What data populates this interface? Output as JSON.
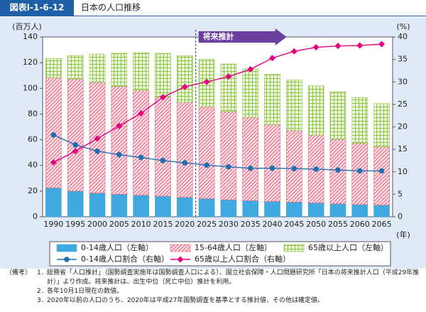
{
  "header": {
    "label": "図表Ⅰ-1-6-12",
    "title": "日本の人口推移"
  },
  "chart_data": {
    "type": "bar",
    "stacked": true,
    "y_label": "(百万人)",
    "y2_label": "(%)",
    "x_unit": "(年)",
    "annotation": "将来推計",
    "categories": [
      "1990",
      "1995",
      "2000",
      "2005",
      "2010",
      "2015",
      "2020",
      "2025",
      "2030",
      "2035",
      "2040",
      "2045",
      "2050",
      "2055",
      "2060",
      "2065"
    ],
    "series": [
      {
        "name": "0-14歳人口（左軸）",
        "color": "#3fa9e0",
        "values": [
          22.5,
          20.0,
          18.5,
          17.5,
          16.8,
          16.0,
          15.1,
          14.1,
          13.2,
          12.5,
          11.9,
          11.4,
          10.8,
          10.1,
          9.5,
          9.0
        ]
      },
      {
        "name": "15-64歳人口（左軸）",
        "color": "#e8607a",
        "values": [
          85.9,
          87.3,
          86.2,
          84.1,
          81.7,
          77.3,
          74.1,
          71.7,
          68.8,
          64.9,
          59.8,
          55.8,
          52.8,
          50.3,
          47.9,
          45.3
        ]
      },
      {
        "name": "65歳以上人口（左軸）",
        "color": "#8cc63f",
        "values": [
          14.9,
          18.3,
          22.0,
          25.7,
          29.3,
          33.9,
          36.2,
          36.8,
          36.9,
          37.8,
          39.2,
          39.2,
          38.4,
          37.0,
          35.4,
          33.8
        ]
      },
      {
        "name": "0-14歳人口割合（右軸）",
        "color": "#1f6fb5",
        "type": "line",
        "axis": "y2",
        "marker": "circle",
        "values": [
          18.2,
          16.0,
          14.6,
          13.8,
          13.2,
          12.5,
          12.0,
          11.5,
          11.1,
          10.8,
          10.8,
          10.7,
          10.6,
          10.4,
          10.2,
          10.2
        ]
      },
      {
        "name": "65歳以上人口割合（右軸）",
        "color": "#e4007f",
        "type": "line",
        "axis": "y2",
        "marker": "diamond",
        "values": [
          12.1,
          14.6,
          17.4,
          20.2,
          23.0,
          26.6,
          28.9,
          30.0,
          31.2,
          32.8,
          35.3,
          36.8,
          37.7,
          38.0,
          38.1,
          38.4
        ]
      }
    ],
    "ylim": [
      0,
      140
    ],
    "yticks": [
      0,
      20,
      40,
      60,
      80,
      100,
      120,
      140
    ],
    "y2lim": [
      0,
      40
    ],
    "y2ticks": [
      0,
      5,
      10,
      15,
      20,
      25,
      30,
      35,
      40
    ]
  },
  "notes": {
    "label": "（備考）",
    "items": [
      {
        "number": "1．",
        "text": "総務省「人口推計」（国勢調査実施年は国勢調査人口による）、国立社会保障・人口問題研究所「日本の将来推計人口（平成29年推計）」より作成。将来推計は、出生中位（死亡中位）推計を利用。"
      },
      {
        "number": "2．",
        "text": "各年10月1日現在の数値。"
      },
      {
        "number": "3．",
        "text": "2020年以前の人口のうち、2020年は平成27年国勢調査を基準とする推計値、その他は確定値。"
      }
    ]
  }
}
